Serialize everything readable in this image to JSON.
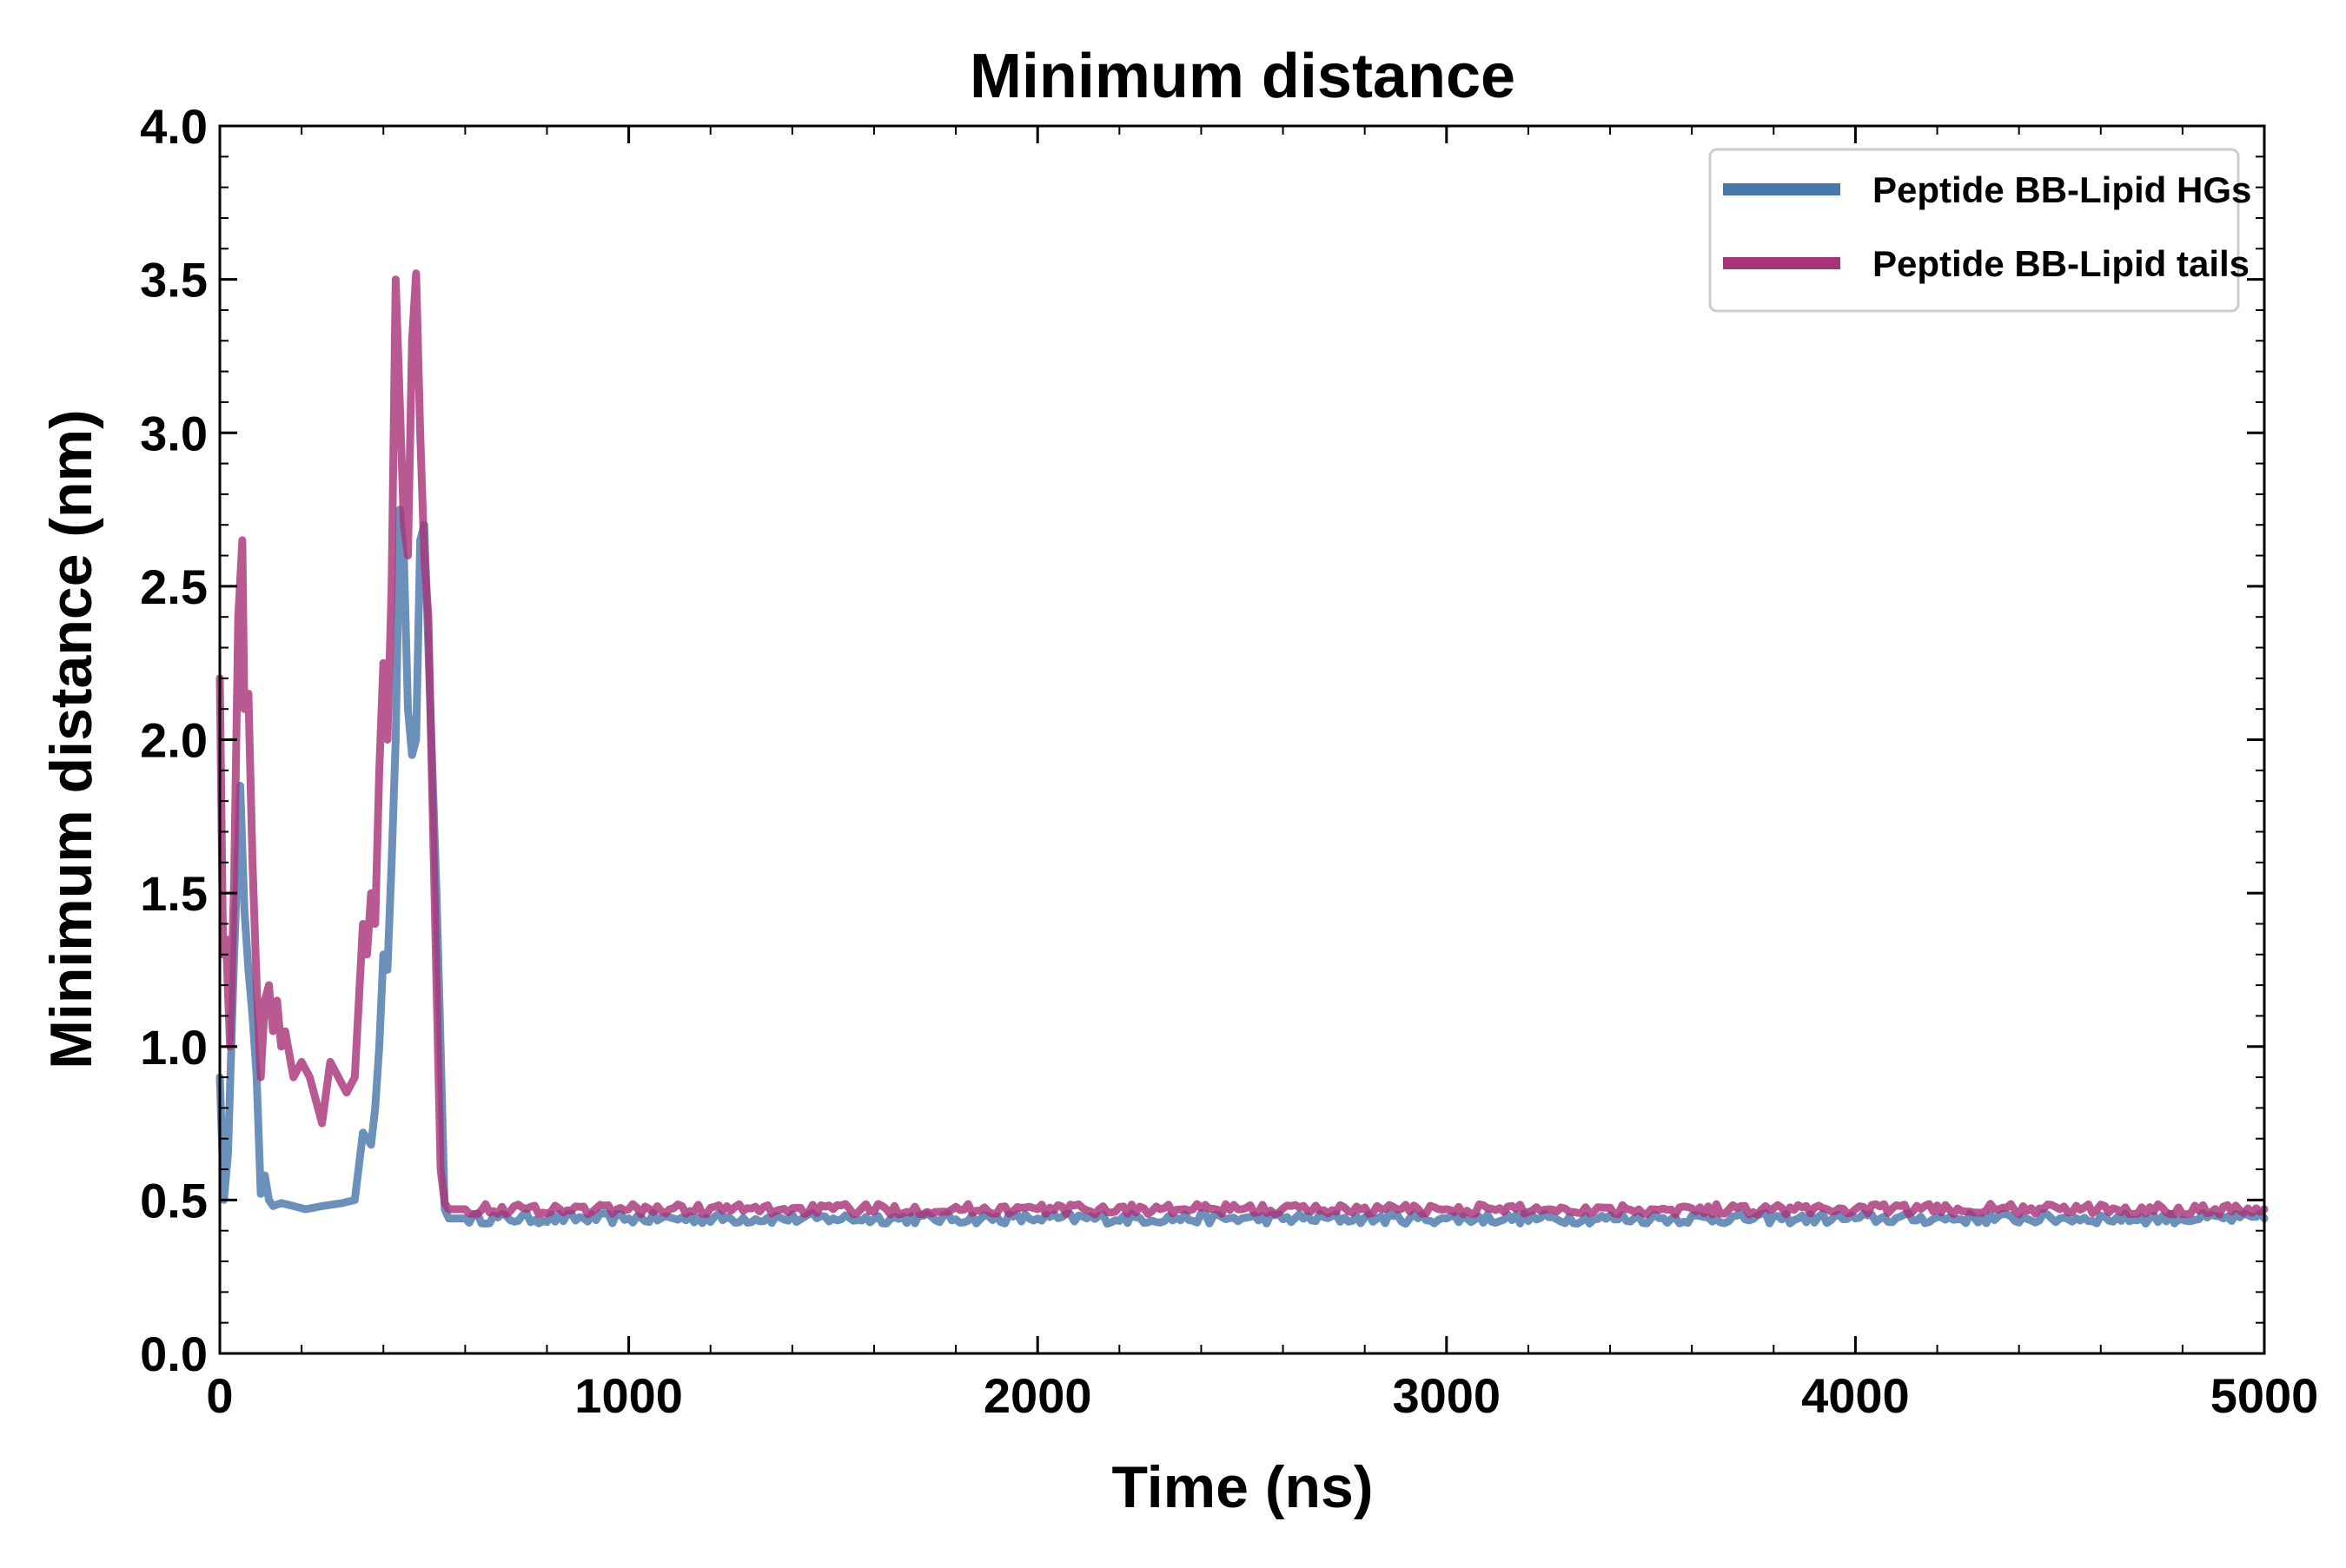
{
  "chart_data": {
    "type": "line",
    "title": "Minimum distance",
    "xlabel": "Time (ns)",
    "ylabel": "Minimum distance (nm)",
    "xlim": [
      0,
      5000
    ],
    "ylim": [
      0.0,
      4.0
    ],
    "xticks": [
      0,
      1000,
      2000,
      3000,
      4000,
      5000
    ],
    "xtick_labels": [
      "0",
      "1000",
      "2000",
      "3000",
      "4000",
      "5000"
    ],
    "yticks": [
      0.0,
      0.5,
      1.0,
      1.5,
      2.0,
      2.5,
      3.0,
      3.5,
      4.0
    ],
    "ytick_labels": [
      "0.0",
      "0.5",
      "1.0",
      "1.5",
      "2.0",
      "2.5",
      "3.0",
      "3.5",
      "4.0"
    ],
    "grid": false,
    "legend_position": "top-right",
    "series": [
      {
        "name": "Peptide BB-Lipid HGs",
        "color": "#4a77a9",
        "x": [
          0,
          10,
          20,
          35,
          50,
          60,
          70,
          80,
          90,
          100,
          110,
          120,
          130,
          150,
          180,
          210,
          250,
          300,
          330,
          350,
          370,
          380,
          390,
          400,
          410,
          420,
          430,
          440,
          450,
          460,
          470,
          480,
          490,
          500,
          510,
          520,
          530,
          540,
          550,
          560,
          600,
          1000,
          1500,
          2000,
          2500,
          3000,
          3500,
          4000,
          4500,
          5000
        ],
        "values": [
          0.9,
          0.5,
          0.65,
          1.3,
          1.85,
          1.45,
          1.25,
          1.1,
          0.9,
          0.52,
          0.58,
          0.5,
          0.48,
          0.49,
          0.48,
          0.47,
          0.48,
          0.49,
          0.5,
          0.72,
          0.68,
          0.8,
          1.0,
          1.3,
          1.25,
          1.6,
          2.0,
          2.75,
          2.6,
          2.1,
          1.95,
          2.0,
          2.65,
          2.7,
          2.3,
          1.9,
          1.5,
          1.0,
          0.47,
          0.44,
          0.44,
          0.44,
          0.44,
          0.44,
          0.44,
          0.44,
          0.44,
          0.44,
          0.44,
          0.44
        ]
      },
      {
        "name": "Peptide BB-Lipid tails",
        "color": "#a8357a",
        "x": [
          0,
          8,
          15,
          25,
          35,
          45,
          55,
          60,
          70,
          80,
          90,
          100,
          110,
          120,
          130,
          140,
          150,
          160,
          180,
          200,
          220,
          240,
          250,
          270,
          290,
          310,
          330,
          350,
          360,
          370,
          380,
          390,
          400,
          410,
          420,
          430,
          440,
          450,
          460,
          470,
          480,
          490,
          500,
          510,
          520,
          530,
          540,
          550,
          560,
          600,
          1000,
          1500,
          2000,
          2500,
          3000,
          3500,
          4000,
          4500,
          5000
        ],
        "values": [
          2.2,
          1.3,
          1.35,
          1.0,
          1.55,
          2.4,
          2.65,
          2.1,
          2.15,
          1.6,
          1.2,
          0.9,
          1.15,
          1.2,
          1.05,
          1.15,
          1.0,
          1.05,
          0.9,
          0.95,
          0.9,
          0.8,
          0.75,
          0.95,
          0.9,
          0.85,
          0.9,
          1.4,
          1.3,
          1.5,
          1.4,
          1.9,
          2.25,
          2.0,
          2.5,
          3.5,
          3.1,
          2.7,
          2.6,
          3.3,
          3.52,
          3.0,
          2.6,
          2.4,
          1.8,
          1.2,
          0.6,
          0.49,
          0.47,
          0.47,
          0.47,
          0.47,
          0.47,
          0.47,
          0.47,
          0.47,
          0.47,
          0.47,
          0.47
        ]
      }
    ]
  }
}
